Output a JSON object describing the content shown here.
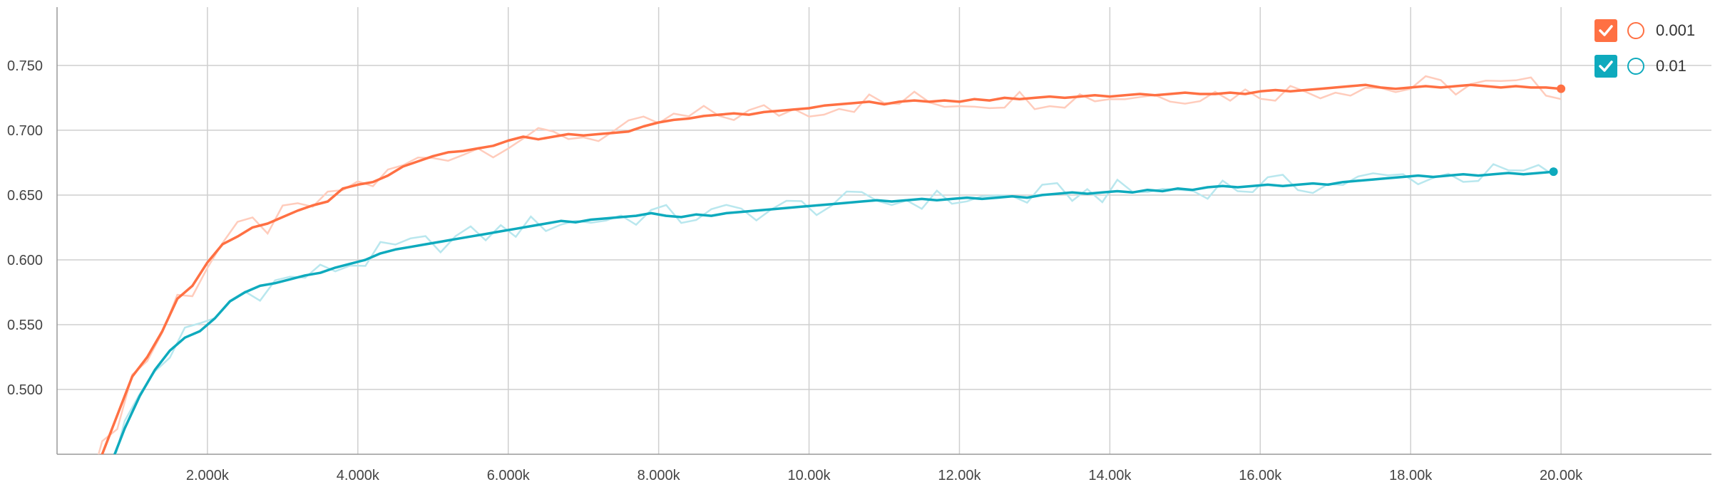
{
  "colors": {
    "orange": "#ff7043",
    "orange_faint": "#ffccbc",
    "teal": "#0eaabd",
    "teal_faint": "#b9e7ee",
    "grid": "#cfcfcf",
    "axis": "#999999"
  },
  "legend": [
    {
      "label": "0.001",
      "color": "#ff7043",
      "checked": true,
      "icon": "check-icon"
    },
    {
      "label": "0.01",
      "color": "#0eaabd",
      "checked": true,
      "icon": "check-icon"
    }
  ],
  "chart_data": {
    "type": "line",
    "title": "",
    "xlabel": "",
    "ylabel": "",
    "grid": true,
    "legend_position": "top-right",
    "xlim": [
      0,
      22000
    ],
    "ylim": [
      0.45,
      0.795
    ],
    "x_ticks": [
      2000,
      4000,
      6000,
      8000,
      10000,
      12000,
      14000,
      16000,
      18000,
      20000
    ],
    "x_tick_labels": [
      "2.000k",
      "4.000k",
      "6.000k",
      "8.000k",
      "10.00k",
      "12.00k",
      "14.00k",
      "16.00k",
      "18.00k",
      "20.00k"
    ],
    "y_ticks": [
      0.5,
      0.55,
      0.6,
      0.65,
      0.7,
      0.75
    ],
    "y_tick_labels": [
      "0.500",
      "0.550",
      "0.600",
      "0.650",
      "0.700",
      "0.750"
    ],
    "series": [
      {
        "name": "0.001",
        "color": "#ff7043",
        "points": [
          [
            400,
            0.43
          ],
          [
            600,
            0.45
          ],
          [
            800,
            0.48
          ],
          [
            1000,
            0.51
          ],
          [
            1200,
            0.525
          ],
          [
            1400,
            0.545
          ],
          [
            1600,
            0.57
          ],
          [
            1800,
            0.58
          ],
          [
            2000,
            0.598
          ],
          [
            2200,
            0.612
          ],
          [
            2400,
            0.618
          ],
          [
            2600,
            0.625
          ],
          [
            2800,
            0.628
          ],
          [
            3000,
            0.633
          ],
          [
            3200,
            0.638
          ],
          [
            3400,
            0.642
          ],
          [
            3600,
            0.645
          ],
          [
            3800,
            0.655
          ],
          [
            4000,
            0.658
          ],
          [
            4200,
            0.66
          ],
          [
            4400,
            0.665
          ],
          [
            4600,
            0.672
          ],
          [
            4800,
            0.676
          ],
          [
            5000,
            0.68
          ],
          [
            5200,
            0.683
          ],
          [
            5400,
            0.684
          ],
          [
            5600,
            0.686
          ],
          [
            5800,
            0.688
          ],
          [
            6000,
            0.692
          ],
          [
            6200,
            0.695
          ],
          [
            6400,
            0.693
          ],
          [
            6600,
            0.695
          ],
          [
            6800,
            0.697
          ],
          [
            7000,
            0.696
          ],
          [
            7200,
            0.697
          ],
          [
            7400,
            0.698
          ],
          [
            7600,
            0.699
          ],
          [
            7800,
            0.703
          ],
          [
            8000,
            0.706
          ],
          [
            8200,
            0.708
          ],
          [
            8400,
            0.709
          ],
          [
            8600,
            0.711
          ],
          [
            8800,
            0.712
          ],
          [
            9000,
            0.713
          ],
          [
            9200,
            0.712
          ],
          [
            9400,
            0.714
          ],
          [
            9600,
            0.715
          ],
          [
            9800,
            0.716
          ],
          [
            10000,
            0.717
          ],
          [
            10200,
            0.719
          ],
          [
            10400,
            0.72
          ],
          [
            10600,
            0.721
          ],
          [
            10800,
            0.722
          ],
          [
            11000,
            0.72
          ],
          [
            11200,
            0.722
          ],
          [
            11400,
            0.723
          ],
          [
            11600,
            0.722
          ],
          [
            11800,
            0.723
          ],
          [
            12000,
            0.722
          ],
          [
            12200,
            0.724
          ],
          [
            12400,
            0.723
          ],
          [
            12600,
            0.725
          ],
          [
            12800,
            0.724
          ],
          [
            13000,
            0.725
          ],
          [
            13200,
            0.726
          ],
          [
            13400,
            0.725
          ],
          [
            13600,
            0.726
          ],
          [
            13800,
            0.727
          ],
          [
            14000,
            0.726
          ],
          [
            14200,
            0.727
          ],
          [
            14400,
            0.728
          ],
          [
            14600,
            0.727
          ],
          [
            14800,
            0.728
          ],
          [
            15000,
            0.729
          ],
          [
            15200,
            0.728
          ],
          [
            15400,
            0.728
          ],
          [
            15600,
            0.729
          ],
          [
            15800,
            0.728
          ],
          [
            16000,
            0.73
          ],
          [
            16200,
            0.731
          ],
          [
            16400,
            0.73
          ],
          [
            16600,
            0.731
          ],
          [
            16800,
            0.732
          ],
          [
            17000,
            0.733
          ],
          [
            17200,
            0.734
          ],
          [
            17400,
            0.735
          ],
          [
            17600,
            0.733
          ],
          [
            17800,
            0.732
          ],
          [
            18000,
            0.733
          ],
          [
            18200,
            0.734
          ],
          [
            18400,
            0.733
          ],
          [
            18600,
            0.734
          ],
          [
            18800,
            0.735
          ],
          [
            19000,
            0.734
          ],
          [
            19200,
            0.733
          ],
          [
            19400,
            0.734
          ],
          [
            19600,
            0.733
          ],
          [
            19800,
            0.733
          ],
          [
            20000,
            0.732
          ]
        ]
      },
      {
        "name": "0.01",
        "color": "#0eaabd",
        "points": [
          [
            700,
            0.44
          ],
          [
            900,
            0.47
          ],
          [
            1100,
            0.495
          ],
          [
            1300,
            0.515
          ],
          [
            1500,
            0.53
          ],
          [
            1700,
            0.54
          ],
          [
            1900,
            0.545
          ],
          [
            2100,
            0.555
          ],
          [
            2300,
            0.568
          ],
          [
            2500,
            0.575
          ],
          [
            2700,
            0.58
          ],
          [
            2900,
            0.582
          ],
          [
            3100,
            0.585
          ],
          [
            3300,
            0.588
          ],
          [
            3500,
            0.59
          ],
          [
            3700,
            0.594
          ],
          [
            3900,
            0.597
          ],
          [
            4100,
            0.6
          ],
          [
            4300,
            0.605
          ],
          [
            4500,
            0.608
          ],
          [
            4700,
            0.61
          ],
          [
            4900,
            0.612
          ],
          [
            5100,
            0.614
          ],
          [
            5300,
            0.616
          ],
          [
            5500,
            0.618
          ],
          [
            5700,
            0.62
          ],
          [
            5900,
            0.622
          ],
          [
            6100,
            0.624
          ],
          [
            6300,
            0.626
          ],
          [
            6500,
            0.628
          ],
          [
            6700,
            0.63
          ],
          [
            6900,
            0.629
          ],
          [
            7100,
            0.631
          ],
          [
            7300,
            0.632
          ],
          [
            7500,
            0.633
          ],
          [
            7700,
            0.634
          ],
          [
            7900,
            0.636
          ],
          [
            8100,
            0.634
          ],
          [
            8300,
            0.633
          ],
          [
            8500,
            0.635
          ],
          [
            8700,
            0.634
          ],
          [
            8900,
            0.636
          ],
          [
            9100,
            0.637
          ],
          [
            9300,
            0.638
          ],
          [
            9500,
            0.639
          ],
          [
            9700,
            0.64
          ],
          [
            9900,
            0.641
          ],
          [
            10100,
            0.642
          ],
          [
            10300,
            0.643
          ],
          [
            10500,
            0.644
          ],
          [
            10700,
            0.645
          ],
          [
            10900,
            0.646
          ],
          [
            11100,
            0.645
          ],
          [
            11300,
            0.646
          ],
          [
            11500,
            0.647
          ],
          [
            11700,
            0.646
          ],
          [
            11900,
            0.647
          ],
          [
            12100,
            0.648
          ],
          [
            12300,
            0.647
          ],
          [
            12500,
            0.648
          ],
          [
            12700,
            0.649
          ],
          [
            12900,
            0.648
          ],
          [
            13100,
            0.65
          ],
          [
            13300,
            0.651
          ],
          [
            13500,
            0.652
          ],
          [
            13700,
            0.651
          ],
          [
            13900,
            0.652
          ],
          [
            14100,
            0.653
          ],
          [
            14300,
            0.652
          ],
          [
            14500,
            0.654
          ],
          [
            14700,
            0.653
          ],
          [
            14900,
            0.655
          ],
          [
            15100,
            0.654
          ],
          [
            15300,
            0.656
          ],
          [
            15500,
            0.657
          ],
          [
            15700,
            0.656
          ],
          [
            15900,
            0.657
          ],
          [
            16100,
            0.658
          ],
          [
            16300,
            0.657
          ],
          [
            16500,
            0.658
          ],
          [
            16700,
            0.659
          ],
          [
            16900,
            0.658
          ],
          [
            17100,
            0.66
          ],
          [
            17300,
            0.661
          ],
          [
            17500,
            0.662
          ],
          [
            17700,
            0.663
          ],
          [
            17900,
            0.664
          ],
          [
            18100,
            0.665
          ],
          [
            18300,
            0.664
          ],
          [
            18500,
            0.665
          ],
          [
            18700,
            0.666
          ],
          [
            18900,
            0.665
          ],
          [
            19100,
            0.666
          ],
          [
            19300,
            0.667
          ],
          [
            19500,
            0.666
          ],
          [
            19700,
            0.667
          ],
          [
            19900,
            0.668
          ]
        ]
      }
    ]
  }
}
